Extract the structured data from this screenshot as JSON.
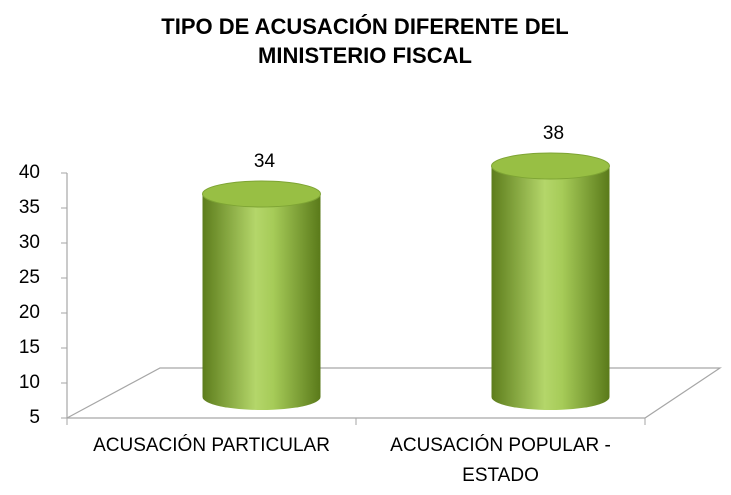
{
  "chart_data": {
    "type": "bar",
    "title": "TIPO DE ACUSACIÓN DIFERENTE DEL MINISTERIO FISCAL",
    "categories": [
      "ACUSACIÓN PARTICULAR",
      "ACUSACIÓN POPULAR - ESTADO"
    ],
    "values": [
      34,
      38
    ],
    "color": "#8db33a",
    "ylim": [
      5,
      40
    ],
    "yticks": [
      5,
      10,
      15,
      20,
      25,
      30,
      35,
      40
    ]
  }
}
